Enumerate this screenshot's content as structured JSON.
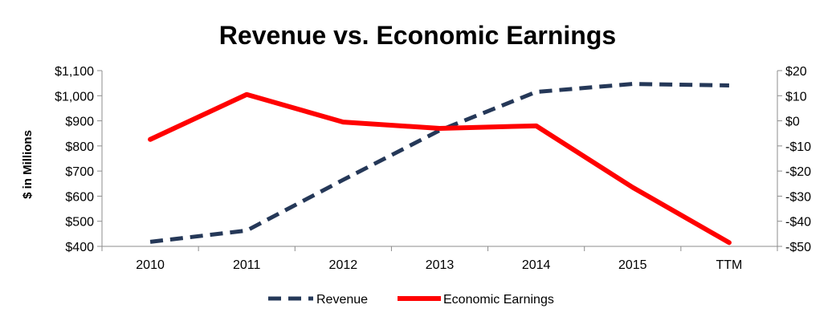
{
  "chart_data": {
    "type": "line",
    "title": "Revenue vs. Economic Earnings",
    "ylabel": "$ in Millions",
    "categories": [
      "2010",
      "2011",
      "2012",
      "2013",
      "2014",
      "2015",
      "TTM"
    ],
    "y_left": {
      "ylim": [
        400,
        1100
      ],
      "ticks": [
        400,
        500,
        600,
        700,
        800,
        900,
        1000,
        1100
      ],
      "tick_labels": [
        "$400",
        "$500",
        "$600",
        "$700",
        "$800",
        "$900",
        "$1,000",
        "$1,100"
      ]
    },
    "y_right": {
      "ylim": [
        -50,
        20
      ],
      "ticks": [
        -50,
        -40,
        -30,
        -20,
        -10,
        0,
        10,
        20
      ],
      "tick_labels": [
        "-$50",
        "-$40",
        "-$30",
        "-$20",
        "-$10",
        "$0",
        "$10",
        "$20"
      ]
    },
    "series": [
      {
        "name": "Revenue",
        "axis": "left",
        "style": "dashed",
        "color": "#253858",
        "values": [
          418,
          463,
          665,
          862,
          1015,
          1047,
          1041
        ]
      },
      {
        "name": "Economic Earnings",
        "axis": "right",
        "style": "solid",
        "color": "#ff0000",
        "values": [
          -7.4,
          10.5,
          -0.5,
          -3.0,
          -2.0,
          -26.5,
          -48.5
        ]
      }
    ],
    "grid": false,
    "legend": "bottom"
  }
}
